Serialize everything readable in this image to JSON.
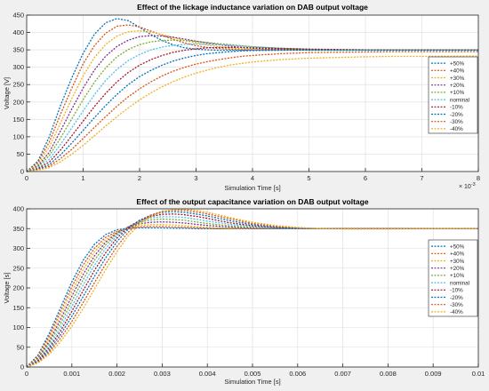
{
  "chart_data": [
    {
      "type": "line",
      "title": "Effect of the lickage inductance variation on DAB output voltage",
      "xlabel": "Simulation Time [s]",
      "ylabel": "Voltage [V]",
      "xlim": [
        0,
        0.008
      ],
      "ylim": [
        0,
        450
      ],
      "x_exponent_label": "× 10",
      "x_exponent_power": "-3",
      "xtick_values": [
        0,
        0.001,
        0.002,
        0.003,
        0.004,
        0.005,
        0.006,
        0.007,
        0.008
      ],
      "xtick_labels": [
        "0",
        "1",
        "2",
        "3",
        "4",
        "5",
        "6",
        "7",
        "8"
      ],
      "ytick_values": [
        0,
        50,
        100,
        150,
        200,
        250,
        300,
        350,
        400,
        450
      ],
      "ytick_labels": [
        "0",
        "50",
        "100",
        "150",
        "200",
        "250",
        "300",
        "350",
        "400",
        "450"
      ],
      "grid": true,
      "legend_position": "right",
      "x": [
        0,
        0.0002,
        0.0004,
        0.0006,
        0.0008,
        0.001,
        0.0012,
        0.0014,
        0.0016,
        0.0018,
        0.002,
        0.0022,
        0.0024,
        0.0026,
        0.0028,
        0.003,
        0.0032,
        0.0034,
        0.0036,
        0.0038,
        0.004,
        0.0045,
        0.005,
        0.0055,
        0.006,
        0.0065,
        0.007,
        0.0075,
        0.008
      ],
      "series": [
        {
          "name": "+50%",
          "color": "#0072bd",
          "values": [
            0,
            30,
            100,
            190,
            270,
            340,
            395,
            428,
            440,
            434,
            415,
            394,
            377,
            364,
            356,
            352,
            350,
            349,
            349,
            349,
            350,
            350,
            350,
            350,
            350,
            350,
            350,
            350,
            350
          ]
        },
        {
          "name": "+40%",
          "color": "#d95319",
          "values": [
            0,
            25,
            85,
            165,
            240,
            310,
            362,
            398,
            418,
            422,
            416,
            404,
            392,
            380,
            370,
            362,
            357,
            354,
            352,
            351,
            350,
            350,
            350,
            350,
            350,
            350,
            350,
            350,
            350
          ]
        },
        {
          "name": "+30%",
          "color": "#edb120",
          "values": [
            0,
            20,
            70,
            140,
            210,
            275,
            328,
            366,
            390,
            402,
            405,
            401,
            394,
            385,
            377,
            370,
            364,
            359,
            356,
            353,
            352,
            350,
            350,
            350,
            350,
            350,
            350,
            350,
            350
          ]
        },
        {
          "name": "+20%",
          "color": "#7e2f8e",
          "values": [
            0,
            16,
            55,
            117,
            180,
            240,
            292,
            332,
            360,
            378,
            388,
            391,
            390,
            386,
            381,
            375,
            370,
            365,
            361,
            357,
            355,
            351,
            350,
            350,
            350,
            350,
            350,
            350,
            350
          ]
        },
        {
          "name": "+10%",
          "color": "#77ac30",
          "values": [
            0,
            13,
            45,
            97,
            152,
            207,
            257,
            298,
            330,
            351,
            365,
            373,
            377,
            378,
            377,
            374,
            371,
            368,
            365,
            362,
            359,
            354,
            351,
            350,
            350,
            350,
            350,
            350,
            350
          ]
        },
        {
          "name": "nominal",
          "color": "#4dbeee",
          "values": [
            0,
            10,
            35,
            78,
            126,
            174,
            221,
            262,
            294,
            319,
            337,
            350,
            358,
            363,
            366,
            367,
            366,
            365,
            363,
            361,
            359,
            355,
            352,
            350,
            350,
            350,
            350,
            350,
            350
          ]
        },
        {
          "name": "-10%",
          "color": "#a2142f",
          "values": [
            0,
            8,
            27,
            62,
            103,
            145,
            187,
            225,
            258,
            285,
            306,
            322,
            334,
            343,
            349,
            353,
            356,
            357,
            357,
            357,
            356,
            354,
            352,
            351,
            350,
            350,
            350,
            350,
            350
          ]
        },
        {
          "name": "-20%",
          "color": "#0072bd",
          "values": [
            0,
            6,
            20,
            48,
            82,
            118,
            155,
            190,
            222,
            250,
            273,
            291,
            306,
            318,
            327,
            334,
            339,
            342,
            345,
            347,
            348,
            349,
            349,
            349,
            349,
            349,
            349,
            349,
            349
          ]
        },
        {
          "name": "-30%",
          "color": "#d95319",
          "values": [
            0,
            5,
            15,
            37,
            64,
            95,
            127,
            158,
            188,
            215,
            238,
            258,
            275,
            289,
            300,
            309,
            316,
            322,
            327,
            331,
            334,
            339,
            342,
            343,
            344,
            345,
            345,
            345,
            345
          ]
        },
        {
          "name": "-40%",
          "color": "#edb120",
          "values": [
            0,
            4,
            11,
            28,
            50,
            75,
            103,
            131,
            158,
            183,
            206,
            226,
            244,
            259,
            272,
            283,
            292,
            300,
            306,
            311,
            315,
            322,
            326,
            328,
            330,
            331,
            331,
            332,
            332
          ]
        }
      ]
    },
    {
      "type": "line",
      "title": "Effect of the output capacitance variation on DAB output voltage",
      "xlabel": "Simulation Time [s]",
      "ylabel": "Voltage [s]",
      "xlim": [
        0,
        0.01
      ],
      "ylim": [
        0,
        400
      ],
      "xtick_values": [
        0,
        0.001,
        0.002,
        0.003,
        0.004,
        0.005,
        0.006,
        0.007,
        0.008,
        0.009,
        0.01
      ],
      "xtick_labels": [
        "0",
        "0.001",
        "0.002",
        "0.003",
        "0.004",
        "0.005",
        "0.006",
        "0.007",
        "0.008",
        "0.009",
        "0.01"
      ],
      "ytick_values": [
        0,
        50,
        100,
        150,
        200,
        250,
        300,
        350,
        400
      ],
      "ytick_labels": [
        "0",
        "50",
        "100",
        "150",
        "200",
        "250",
        "300",
        "350",
        "400"
      ],
      "grid": true,
      "legend_position": "right",
      "x": [
        0,
        0.00025,
        0.0005,
        0.00075,
        0.001,
        0.00125,
        0.0015,
        0.00175,
        0.002,
        0.00225,
        0.0025,
        0.00275,
        0.003,
        0.00325,
        0.0035,
        0.00375,
        0.004,
        0.00425,
        0.0045,
        0.00475,
        0.005,
        0.0055,
        0.006,
        0.0065,
        0.007,
        0.0075,
        0.008,
        0.009,
        0.01
      ],
      "series": [
        {
          "name": "+50%",
          "color": "#0072bd",
          "values": [
            0,
            30,
            85,
            150,
            215,
            270,
            310,
            335,
            347,
            351,
            352,
            352,
            352,
            351,
            351,
            350,
            350,
            350,
            350,
            350,
            350,
            350,
            350,
            350,
            350,
            350,
            350,
            350,
            350
          ]
        },
        {
          "name": "+40%",
          "color": "#d95319",
          "values": [
            0,
            27,
            78,
            140,
            203,
            258,
            300,
            328,
            343,
            350,
            354,
            355,
            355,
            354,
            353,
            352,
            351,
            350,
            350,
            350,
            350,
            350,
            350,
            350,
            350,
            350,
            350,
            350,
            350
          ]
        },
        {
          "name": "+30%",
          "color": "#edb120",
          "values": [
            0,
            24,
            71,
            130,
            191,
            246,
            291,
            322,
            341,
            352,
            358,
            360,
            360,
            359,
            357,
            355,
            353,
            352,
            351,
            350,
            350,
            350,
            350,
            350,
            350,
            350,
            350,
            350,
            350
          ]
        },
        {
          "name": "+20%",
          "color": "#7e2f8e",
          "values": [
            0,
            22,
            65,
            120,
            179,
            234,
            281,
            316,
            339,
            354,
            362,
            366,
            367,
            366,
            364,
            361,
            358,
            356,
            354,
            352,
            351,
            350,
            350,
            350,
            350,
            350,
            350,
            350,
            350
          ]
        },
        {
          "name": "+10%",
          "color": "#77ac30",
          "values": [
            0,
            20,
            59,
            110,
            166,
            221,
            270,
            309,
            336,
            355,
            366,
            372,
            374,
            373,
            371,
            367,
            363,
            360,
            357,
            355,
            353,
            351,
            350,
            350,
            350,
            350,
            350,
            350,
            350
          ]
        },
        {
          "name": "nominal",
          "color": "#4dbeee",
          "values": [
            0,
            18,
            53,
            100,
            153,
            207,
            257,
            300,
            332,
            355,
            369,
            377,
            380,
            380,
            378,
            374,
            369,
            365,
            361,
            358,
            355,
            352,
            350,
            350,
            350,
            350,
            350,
            350,
            350
          ]
        },
        {
          "name": "-10%",
          "color": "#a2142f",
          "values": [
            0,
            16,
            48,
            91,
            141,
            193,
            244,
            289,
            326,
            353,
            371,
            381,
            386,
            387,
            385,
            381,
            376,
            370,
            365,
            361,
            357,
            353,
            351,
            350,
            350,
            350,
            350,
            350,
            350
          ]
        },
        {
          "name": "-20%",
          "color": "#0072bd",
          "values": [
            0,
            14,
            42,
            82,
            128,
            178,
            229,
            276,
            317,
            349,
            371,
            384,
            391,
            393,
            391,
            387,
            382,
            376,
            370,
            365,
            360,
            354,
            351,
            350,
            350,
            350,
            350,
            350,
            350
          ]
        },
        {
          "name": "-30%",
          "color": "#d95319",
          "values": [
            0,
            12,
            37,
            73,
            115,
            163,
            213,
            261,
            305,
            341,
            367,
            384,
            394,
            397,
            396,
            392,
            387,
            381,
            375,
            369,
            363,
            356,
            352,
            350,
            350,
            350,
            350,
            350,
            350
          ]
        },
        {
          "name": "-40%",
          "color": "#edb120",
          "values": [
            0,
            10,
            32,
            64,
            103,
            148,
            197,
            246,
            292,
            332,
            361,
            381,
            393,
            398,
            399,
            396,
            391,
            385,
            378,
            372,
            366,
            358,
            353,
            350,
            349,
            349,
            349,
            350,
            350
          ]
        }
      ]
    }
  ]
}
